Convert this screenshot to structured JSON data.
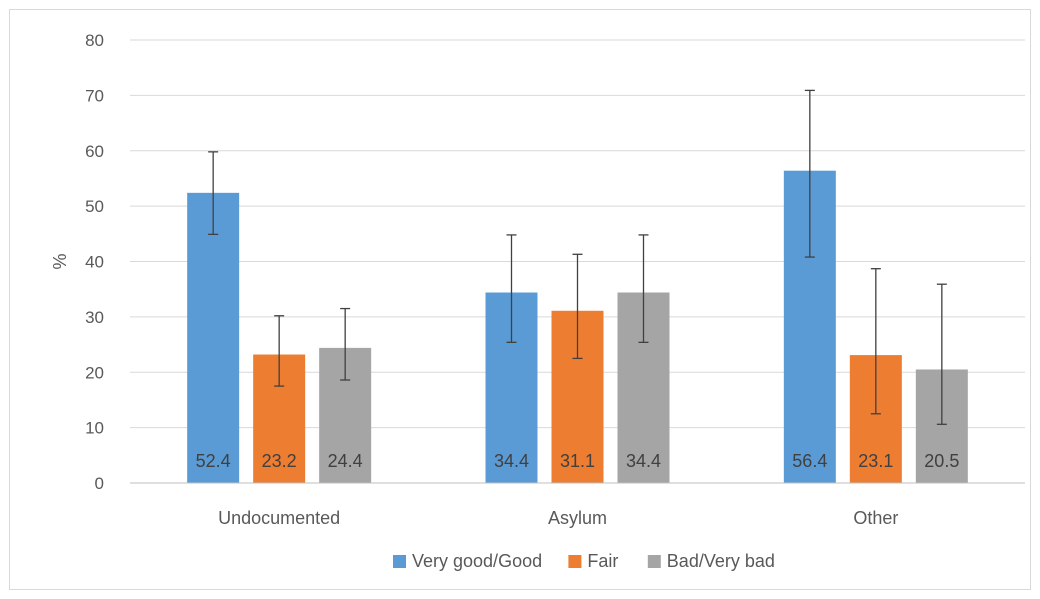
{
  "chart_data": {
    "type": "bar",
    "categories": [
      "Undocumented",
      "Asylum",
      "Other"
    ],
    "series": [
      {
        "name": "Very good/Good",
        "color": "#5b9bd5",
        "values": [
          52.4,
          34.4,
          56.4
        ],
        "error": [
          [
            44.9,
            59.8
          ],
          [
            25.4,
            44.8
          ],
          [
            40.8,
            70.9
          ]
        ]
      },
      {
        "name": "Fair",
        "color": "#ed7d31",
        "values": [
          23.2,
          31.1,
          23.1
        ],
        "error": [
          [
            17.5,
            30.2
          ],
          [
            22.5,
            41.3
          ],
          [
            12.5,
            38.7
          ]
        ]
      },
      {
        "name": "Bad/Very bad",
        "color": "#a5a5a5",
        "values": [
          24.4,
          34.4,
          20.5
        ],
        "error": [
          [
            18.6,
            31.5
          ],
          [
            25.4,
            44.8
          ],
          [
            10.6,
            35.9
          ]
        ]
      }
    ],
    "xlabel": "",
    "ylabel": "%",
    "ylim": [
      0,
      80
    ],
    "yticks": [
      0,
      10,
      20,
      30,
      40,
      50,
      60,
      70,
      80
    ],
    "grid": true,
    "legend": "bottom",
    "gridColor": "#d9d9d9",
    "axisColor": "#bfbfbf",
    "errorBarColor": "#404040"
  }
}
